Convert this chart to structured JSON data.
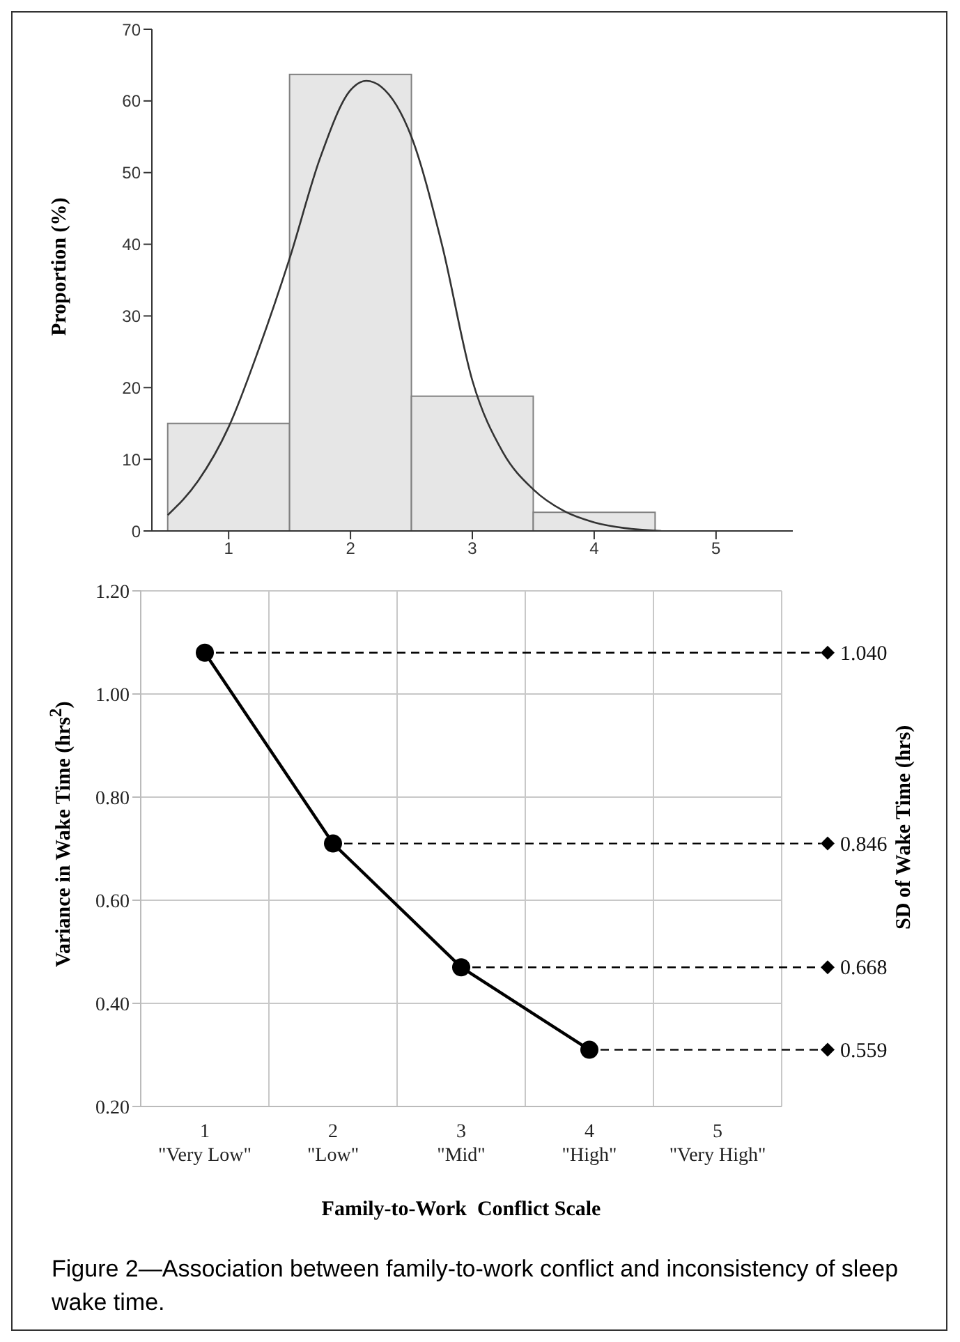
{
  "chart_data": [
    {
      "type": "histogram",
      "ylabel": "Proportion (%)",
      "xlim": [
        0.37,
        5.63
      ],
      "xticks": [
        1,
        2,
        3,
        4,
        5
      ],
      "ylim": [
        0,
        70
      ],
      "yticks": [
        0,
        10,
        20,
        30,
        40,
        50,
        60,
        70
      ],
      "series": [
        {
          "type": "histogram",
          "color": "#e6e6e6",
          "bins": [
            0.5,
            1.5,
            2.5,
            3.5,
            4.5
          ],
          "values": [
            15,
            63.7,
            18.8,
            2.6
          ]
        },
        {
          "type": "line",
          "color": "#333333",
          "x": [
            0.5,
            0.75,
            1,
            1.25,
            1.5,
            1.75,
            2,
            2.13,
            2.25,
            2.5,
            2.75,
            3,
            3.25,
            3.5,
            3.75,
            4,
            4.25,
            4.55
          ],
          "values": [
            2.2,
            7,
            14.5,
            25.5,
            38,
            52,
            61.5,
            62.8,
            62,
            55,
            40,
            21,
            11,
            5.8,
            2.8,
            1.2,
            0.4,
            0
          ]
        }
      ]
    },
    {
      "type": "line",
      "xlabel": "Family-to-Work  Conflict Scale",
      "ylabel": "Variance in Wake Time  (hrs$^{2}$)",
      "y2label": "SD of Wake Time (hrs)",
      "categories": [
        "1\n\"Very Low\"",
        "2\n\"Low\"",
        "3\n\"Mid\"",
        "4\n\"High\"",
        "5\n\"Very High\""
      ],
      "ylim": [
        0.2,
        1.2
      ],
      "yticks": [
        {
          "value": 0.2,
          "label": "0.20"
        },
        {
          "value": 0.4,
          "label": "0.40"
        },
        {
          "value": 0.6,
          "label": "0.60"
        },
        {
          "value": 0.8,
          "label": "0.80"
        },
        {
          "value": 1,
          "label": "1.00"
        },
        {
          "value": 1.2,
          "label": "1.20"
        }
      ],
      "grid": true,
      "marker": "circle",
      "line_style": "solid",
      "series": [
        {
          "color": "#000000",
          "values": [
            1.08,
            0.71,
            0.47,
            0.31,
            null
          ]
        }
      ],
      "ref_lines": [
        {
          "axis": "y",
          "value": 1.08,
          "color": "#000000",
          "line_style": "dashed"
        },
        {
          "axis": "y",
          "value": 0.71,
          "color": "#000000",
          "line_style": "dashed"
        },
        {
          "axis": "y",
          "value": 0.47,
          "color": "#000000",
          "line_style": "dashed"
        },
        {
          "axis": "y",
          "value": 0.31,
          "color": "#000000",
          "line_style": "dashed"
        }
      ],
      "annotations": [
        "1.040",
        "0.846",
        "0.668",
        "0.559",
        "Figure 2—Association between family-to-work conflict and inconsistency of sleep wake time."
      ]
    }
  ]
}
